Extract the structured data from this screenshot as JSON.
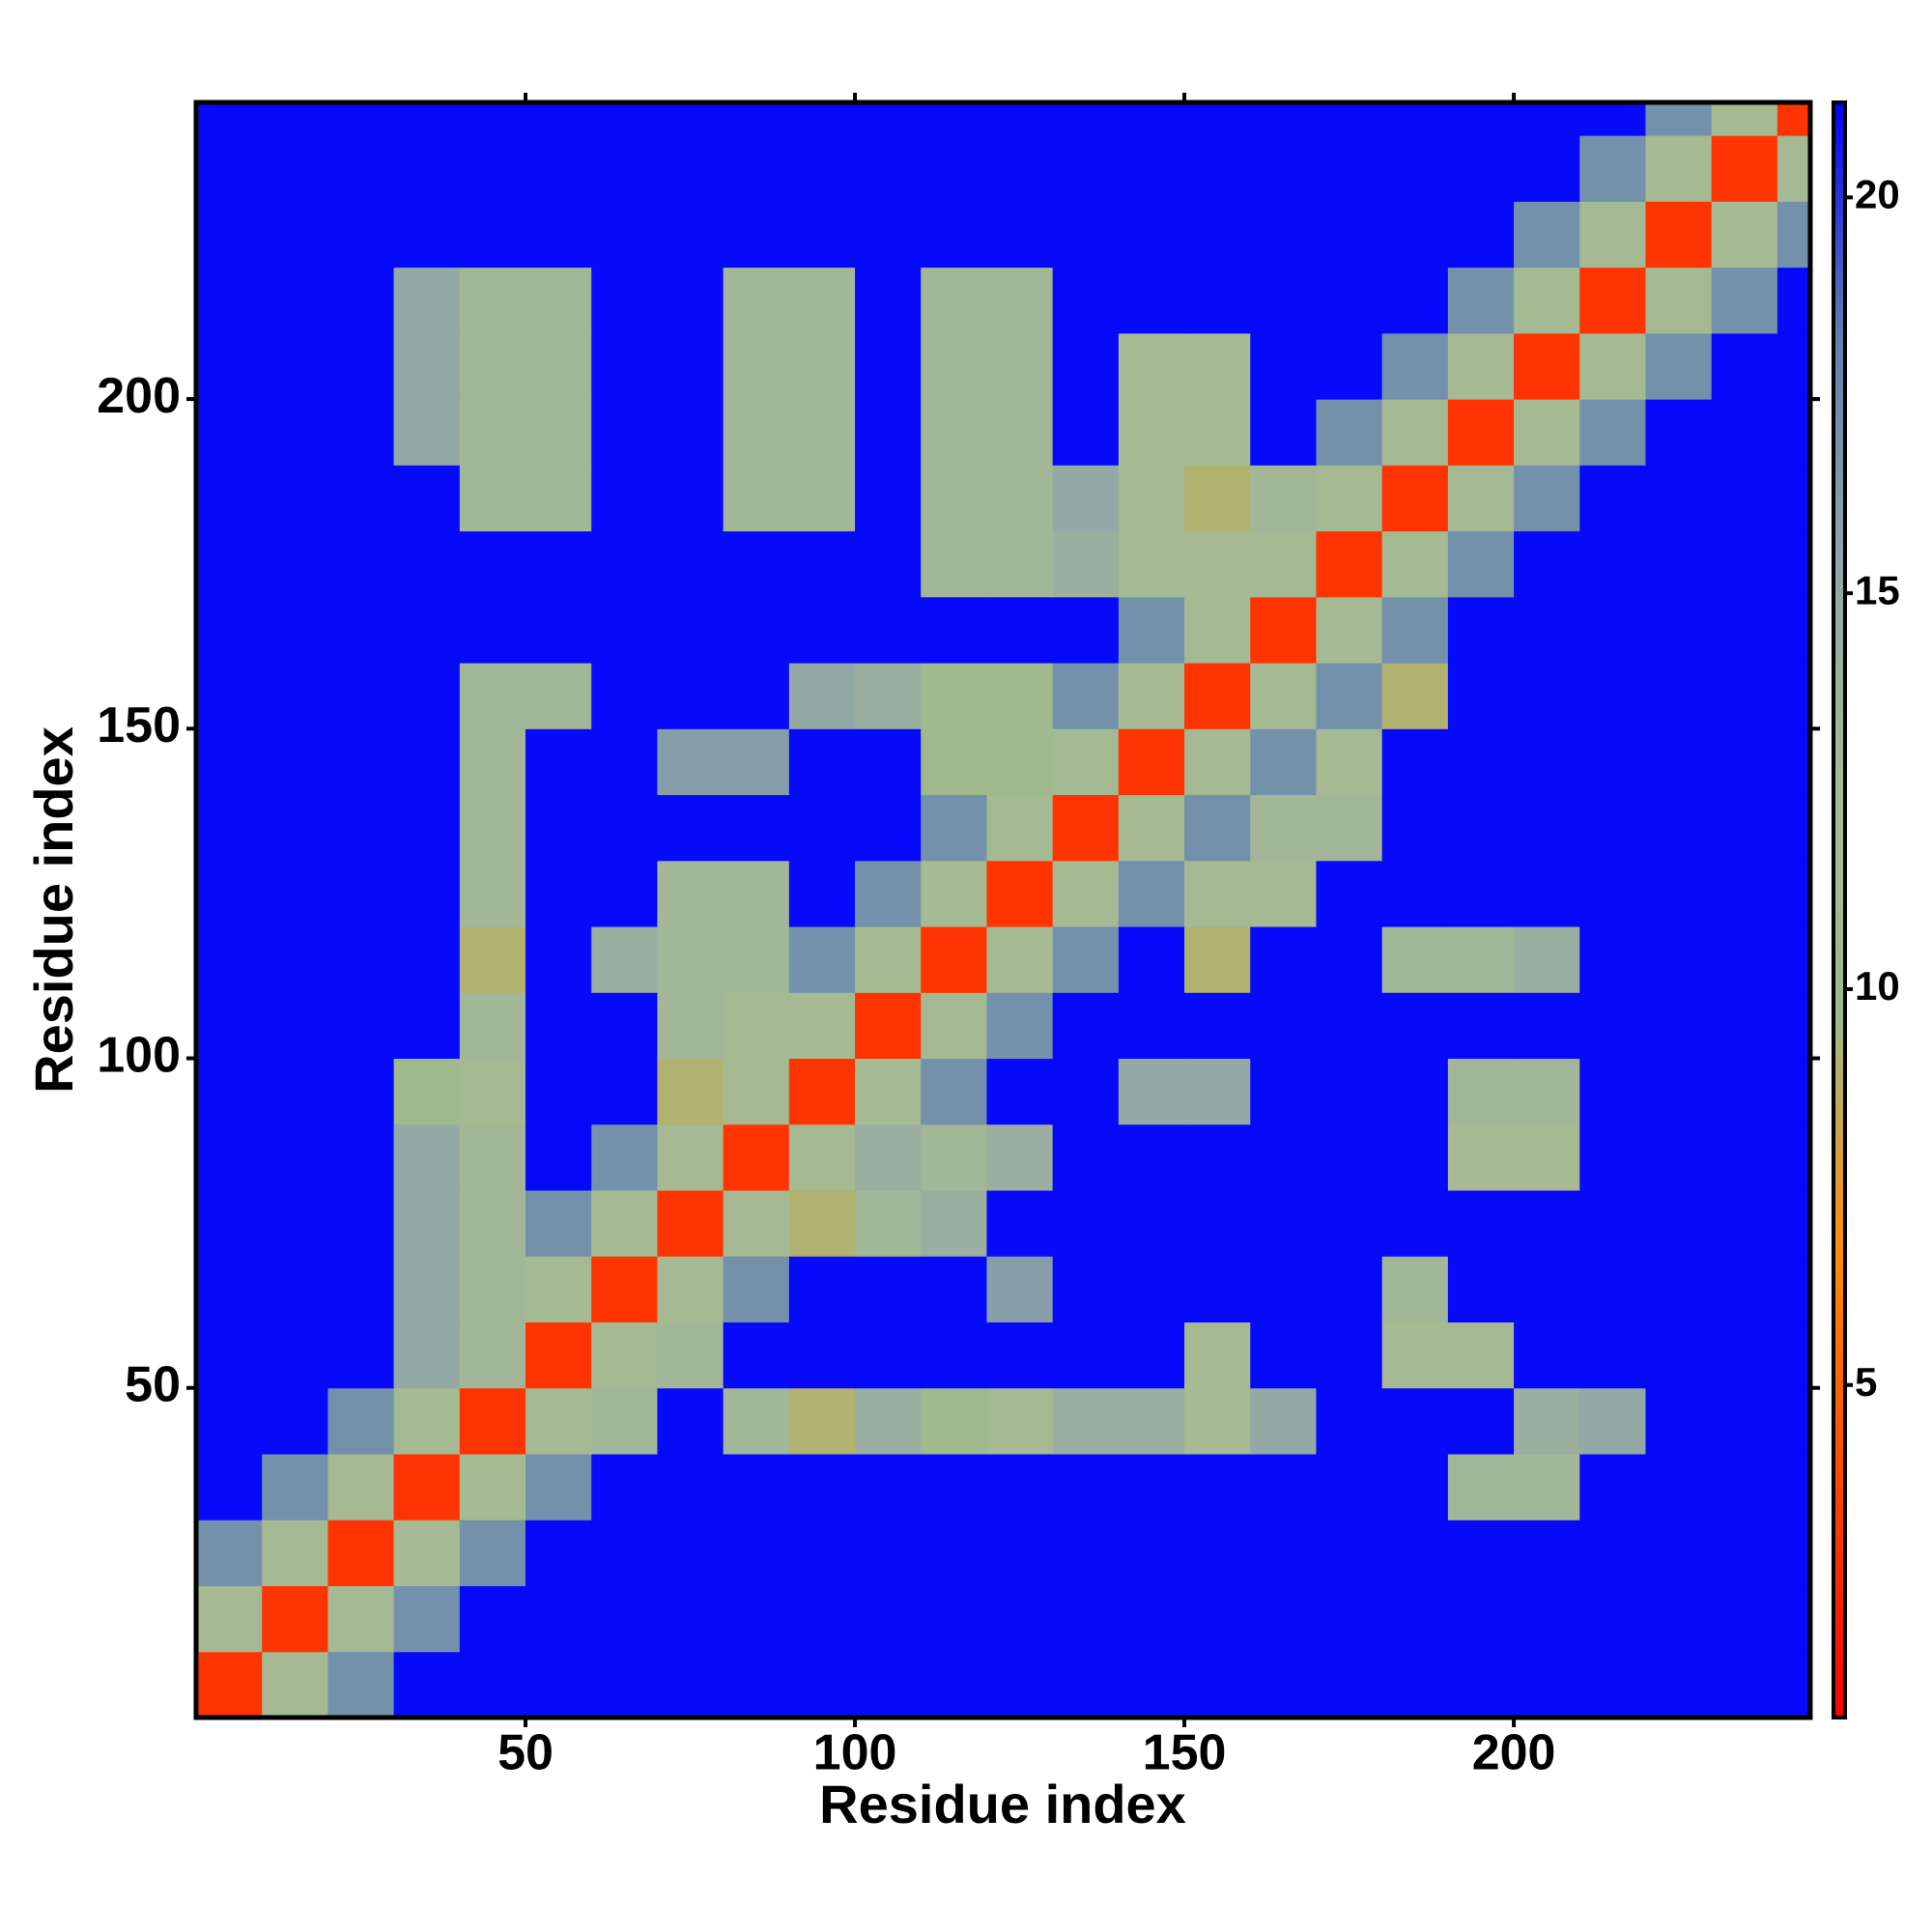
{
  "chart_data": {
    "type": "heatmap",
    "xlabel": "Residue index",
    "ylabel": "Residue index",
    "x": [
      5,
      15,
      25,
      35,
      45,
      55,
      65,
      75,
      85,
      95,
      105,
      115,
      125,
      135,
      145,
      155,
      165,
      175,
      185,
      195,
      205,
      215,
      225,
      235,
      245
    ],
    "y": [
      5,
      15,
      25,
      35,
      45,
      55,
      65,
      75,
      85,
      95,
      105,
      115,
      125,
      135,
      145,
      155,
      165,
      175,
      185,
      195,
      205,
      215,
      225,
      235,
      245
    ],
    "xlim": [
      0,
      245
    ],
    "ylim": [
      0,
      245
    ],
    "xticks": [
      50,
      100,
      150,
      200
    ],
    "yticks": [
      50,
      100,
      150,
      200
    ],
    "zlim": [
      0.8,
      21.2
    ],
    "zticks": [
      5,
      10,
      15,
      20
    ],
    "colors": [
      "#ff0000",
      "#ff4500",
      "#ff8c00",
      "#9fb98a",
      "#a6b994",
      "#8fa7a8",
      "#5f7faf",
      "#0000ff"
    ],
    "z": [
      [
        3,
        12,
        17,
        21,
        21,
        21,
        21,
        21,
        21,
        21,
        21,
        21,
        21,
        21,
        21,
        21,
        21,
        21,
        21,
        21,
        21,
        21,
        21,
        21,
        21
      ],
      [
        12,
        3,
        12,
        17,
        21,
        21,
        21,
        21,
        21,
        21,
        21,
        21,
        21,
        21,
        21,
        21,
        21,
        21,
        21,
        21,
        21,
        21,
        21,
        21,
        21
      ],
      [
        17,
        12,
        3,
        12,
        17,
        21,
        21,
        21,
        21,
        21,
        21,
        21,
        21,
        21,
        21,
        21,
        21,
        21,
        21,
        21,
        21,
        21,
        21,
        21,
        21
      ],
      [
        21,
        17,
        12,
        3,
        12,
        17,
        21,
        21,
        21,
        21,
        21,
        21,
        21,
        21,
        21,
        21,
        21,
        21,
        21,
        13,
        13,
        21,
        21,
        21,
        21
      ],
      [
        21,
        21,
        17,
        12,
        3,
        12,
        13,
        21,
        13,
        9,
        14,
        10,
        12,
        14,
        14,
        12,
        15,
        21,
        21,
        21,
        14,
        15,
        21,
        21,
        21
      ],
      [
        21,
        21,
        21,
        15,
        13,
        3,
        12,
        13,
        21,
        21,
        21,
        21,
        21,
        21,
        21,
        12,
        21,
        21,
        12,
        12,
        21,
        21,
        21,
        21,
        21
      ],
      [
        21,
        21,
        21,
        15,
        13,
        12,
        3,
        12,
        17,
        21,
        21,
        21,
        16,
        21,
        21,
        21,
        21,
        21,
        13,
        21,
        21,
        21,
        21,
        21,
        21
      ],
      [
        21,
        21,
        21,
        15,
        13,
        17,
        12,
        3,
        12,
        9,
        13,
        14,
        21,
        21,
        21,
        21,
        21,
        21,
        21,
        21,
        21,
        21,
        21,
        21,
        21
      ],
      [
        21,
        21,
        21,
        15,
        13,
        21,
        17,
        12,
        3,
        12,
        14,
        13,
        14,
        21,
        21,
        21,
        21,
        21,
        21,
        12,
        12,
        21,
        21,
        21,
        21
      ],
      [
        21,
        21,
        21,
        10,
        12,
        21,
        21,
        9,
        12,
        3,
        12,
        17,
        21,
        21,
        15,
        15,
        21,
        21,
        21,
        13,
        13,
        21,
        21,
        21,
        21
      ],
      [
        21,
        21,
        21,
        21,
        13,
        21,
        21,
        13,
        12,
        12,
        3,
        12,
        17,
        21,
        21,
        21,
        21,
        21,
        21,
        21,
        21,
        21,
        21,
        21,
        21
      ],
      [
        21,
        21,
        21,
        21,
        9,
        21,
        14,
        13,
        13,
        17,
        12,
        3,
        12,
        17,
        21,
        9,
        21,
        21,
        13,
        13,
        14,
        21,
        21,
        21,
        21
      ],
      [
        21,
        21,
        21,
        21,
        13,
        21,
        21,
        13,
        13,
        21,
        17,
        12,
        3,
        12,
        17,
        12,
        12,
        21,
        21,
        21,
        21,
        21,
        21,
        21,
        21
      ],
      [
        21,
        21,
        21,
        21,
        13,
        21,
        21,
        21,
        21,
        21,
        21,
        17,
        12,
        3,
        12,
        17,
        13,
        13,
        21,
        21,
        21,
        21,
        21,
        21,
        21
      ],
      [
        21,
        21,
        21,
        21,
        13,
        21,
        21,
        16,
        16,
        21,
        21,
        10,
        10,
        12,
        3,
        12,
        17,
        12,
        21,
        21,
        21,
        21,
        21,
        21,
        21
      ],
      [
        21,
        21,
        21,
        21,
        13,
        13,
        21,
        21,
        21,
        15,
        14,
        10,
        10,
        17,
        12,
        3,
        12,
        17,
        9,
        21,
        21,
        21,
        21,
        21,
        21
      ],
      [
        21,
        21,
        21,
        21,
        21,
        21,
        21,
        21,
        21,
        21,
        21,
        21,
        21,
        21,
        17,
        12,
        3,
        12,
        17,
        21,
        21,
        21,
        21,
        21,
        21
      ],
      [
        21,
        21,
        21,
        21,
        21,
        21,
        21,
        21,
        21,
        21,
        21,
        13,
        13,
        14,
        12,
        12,
        12,
        3,
        12,
        17,
        21,
        21,
        21,
        21,
        21
      ],
      [
        21,
        21,
        21,
        21,
        13,
        13,
        21,
        21,
        13,
        13,
        21,
        13,
        13,
        15,
        12,
        9,
        13,
        12,
        3,
        12,
        17,
        21,
        21,
        21,
        21
      ],
      [
        21,
        21,
        21,
        15,
        13,
        13,
        21,
        21,
        13,
        13,
        21,
        13,
        13,
        21,
        12,
        12,
        21,
        17,
        12,
        3,
        12,
        17,
        21,
        21,
        21
      ],
      [
        21,
        21,
        21,
        15,
        13,
        13,
        21,
        21,
        13,
        13,
        21,
        13,
        13,
        21,
        12,
        12,
        21,
        21,
        17,
        12,
        3,
        12,
        17,
        21,
        21
      ],
      [
        21,
        21,
        21,
        15,
        13,
        13,
        21,
        21,
        13,
        13,
        21,
        13,
        13,
        21,
        21,
        21,
        21,
        21,
        21,
        17,
        12,
        3,
        12,
        17,
        21
      ],
      [
        21,
        21,
        21,
        21,
        21,
        21,
        21,
        21,
        21,
        21,
        21,
        21,
        21,
        21,
        21,
        21,
        21,
        21,
        21,
        21,
        17,
        12,
        3,
        12,
        17
      ],
      [
        21,
        21,
        21,
        21,
        21,
        21,
        21,
        21,
        21,
        21,
        21,
        21,
        21,
        21,
        21,
        21,
        21,
        21,
        21,
        21,
        21,
        17,
        12,
        3,
        12
      ],
      [
        21,
        21,
        21,
        21,
        21,
        21,
        21,
        21,
        21,
        21,
        21,
        21,
        21,
        21,
        21,
        21,
        21,
        21,
        21,
        21,
        21,
        21,
        17,
        12,
        3
      ]
    ]
  }
}
